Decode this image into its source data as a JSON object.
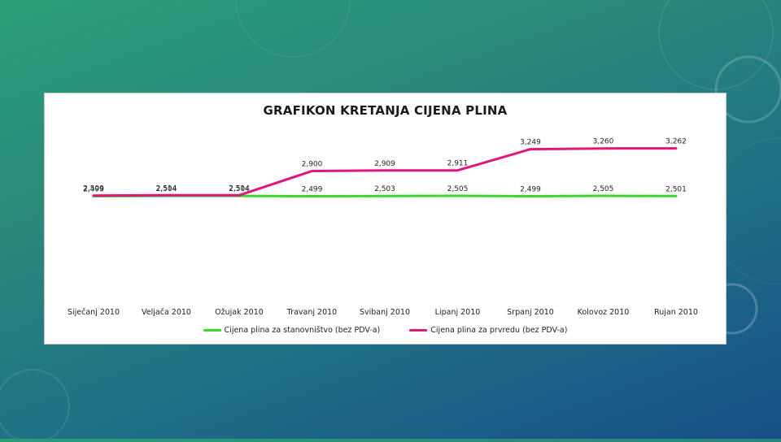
{
  "colors": {
    "series_green": "#3cd62a",
    "series_pink": "#e0157e"
  },
  "chart_data": {
    "type": "line",
    "title": "GRAFIKON KRETANJA CIJENA PLINA",
    "categories": [
      "Siječanj 2010",
      "Veljača 2010",
      "Ožujak 2010",
      "Travanj 2010",
      "Svibanj 2010",
      "Lipanj 2010",
      "Srpanj 2010",
      "Kolovoz 2010",
      "Rujan 2010"
    ],
    "series": [
      {
        "name": "Cijena plina za stanovništvo (bez PDV-a)",
        "color": "#3cd62a",
        "values": [
          2.499,
          2.504,
          2.504,
          2.499,
          2.503,
          2.505,
          2.499,
          2.505,
          2.501
        ],
        "labels": [
          "2,499",
          "2,504",
          "2,504",
          "2,499",
          "2,503",
          "2,505",
          "2,499",
          "2,505",
          "2,501"
        ]
      },
      {
        "name": "Cijena plina za prvredu (bez PDV-a)",
        "color": "#e0157e",
        "values": [
          2.509,
          2.514,
          2.514,
          2.9,
          2.909,
          2.911,
          3.249,
          3.26,
          3.262
        ],
        "labels": [
          "2,509",
          "2,514",
          "2,514",
          "2,900",
          "2,909",
          "2,911",
          "3,249",
          "3,260",
          "3,262"
        ]
      }
    ],
    "xlabel": "",
    "ylabel": "",
    "grid": false,
    "legend": "bottom"
  }
}
